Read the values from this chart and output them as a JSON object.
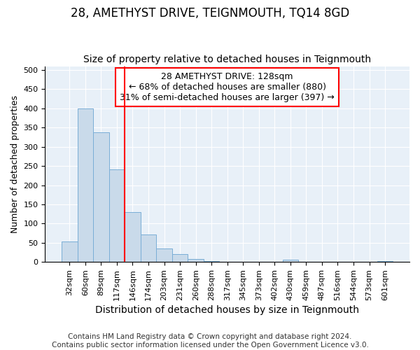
{
  "title": "28, AMETHYST DRIVE, TEIGNMOUTH, TQ14 8GD",
  "subtitle": "Size of property relative to detached houses in Teignmouth",
  "xlabel": "Distribution of detached houses by size in Teignmouth",
  "ylabel": "Number of detached properties",
  "footer_line1": "Contains HM Land Registry data © Crown copyright and database right 2024.",
  "footer_line2": "Contains public sector information licensed under the Open Government Licence v3.0.",
  "bin_labels": [
    "32sqm",
    "60sqm",
    "89sqm",
    "117sqm",
    "146sqm",
    "174sqm",
    "203sqm",
    "231sqm",
    "260sqm",
    "288sqm",
    "317sqm",
    "345sqm",
    "373sqm",
    "402sqm",
    "430sqm",
    "459sqm",
    "487sqm",
    "516sqm",
    "544sqm",
    "573sqm",
    "601sqm"
  ],
  "bar_values": [
    53,
    400,
    338,
    242,
    130,
    72,
    35,
    20,
    7,
    2,
    0,
    0,
    0,
    0,
    5,
    0,
    0,
    0,
    0,
    0,
    3
  ],
  "bar_color": "#c9daea",
  "bar_edge_color": "#7aaed6",
  "red_line_index": 3.5,
  "annotation_text": "28 AMETHYST DRIVE: 128sqm\n← 68% of detached houses are smaller (880)\n31% of semi-detached houses are larger (397) →",
  "annotation_box_color": "white",
  "annotation_box_edge_color": "red",
  "red_line_color": "red",
  "ylim": [
    0,
    510
  ],
  "yticks": [
    0,
    50,
    100,
    150,
    200,
    250,
    300,
    350,
    400,
    450,
    500
  ],
  "background_color": "#e8f0f8",
  "grid_color": "white",
  "title_fontsize": 12,
  "subtitle_fontsize": 10,
  "xlabel_fontsize": 10,
  "ylabel_fontsize": 9,
  "tick_fontsize": 8,
  "annotation_fontsize": 9,
  "footer_fontsize": 7.5
}
